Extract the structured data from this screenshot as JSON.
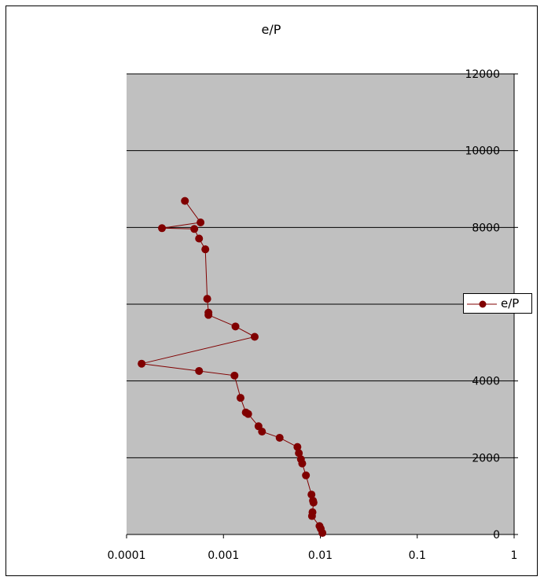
{
  "chart_data": {
    "type": "line",
    "title": "e/P",
    "x_scale": "log",
    "xlim": [
      0.0001,
      1
    ],
    "ylim": [
      0,
      12000
    ],
    "x_ticks": [
      0.0001,
      0.001,
      0.01,
      0.1,
      1
    ],
    "x_tick_labels": [
      "0.0001",
      "0.001",
      "0.01",
      "0.1",
      "1"
    ],
    "y_ticks": [
      0,
      2000,
      4000,
      6000,
      8000,
      10000,
      12000
    ],
    "y_tick_labels": [
      "0",
      "2000",
      "4000",
      "6000",
      "8000",
      "10000",
      "12000"
    ],
    "grid": "horizontal",
    "legend_position": "right",
    "plot_background": "#c0c0c0",
    "series_color": "#800000",
    "series": [
      {
        "name": "e/P",
        "x": [
          0.0105,
          0.0101,
          0.0098,
          0.0082,
          0.0083,
          0.0085,
          0.0084,
          0.0081,
          0.0071,
          0.0065,
          0.0063,
          0.006,
          0.0058,
          0.0038,
          0.0025,
          0.0023,
          0.0018,
          0.0017,
          0.0015,
          0.0013,
          0.00056,
          0.000143,
          0.0021,
          0.00133,
          0.0007,
          0.0007,
          0.00068,
          0.00065,
          0.00056,
          0.0005,
          0.000232,
          0.00058,
          0.0004
        ],
        "y": [
          40,
          150,
          220,
          480,
          580,
          830,
          880,
          1040,
          1540,
          1850,
          1960,
          2120,
          2280,
          2520,
          2680,
          2820,
          3140,
          3180,
          3560,
          4140,
          4260,
          4450,
          5150,
          5420,
          5720,
          5780,
          6140,
          7430,
          7710,
          7960,
          7980,
          8130,
          8690
        ]
      }
    ]
  }
}
